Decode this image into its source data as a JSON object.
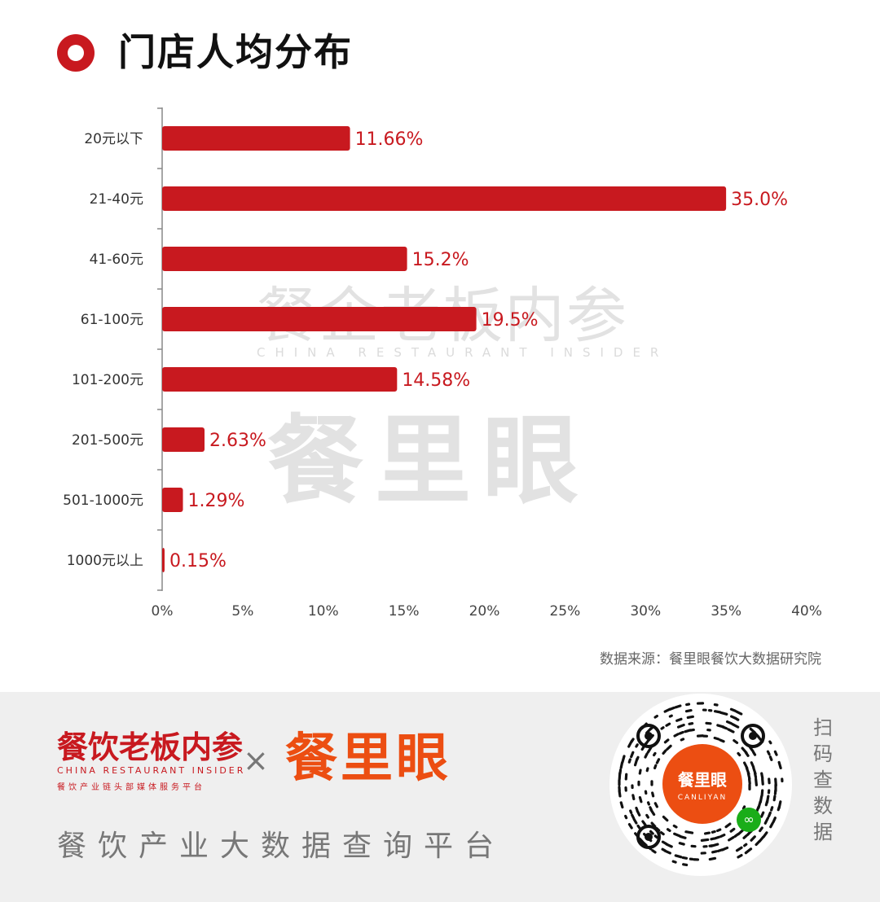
{
  "header": {
    "title": "门店人均分布"
  },
  "watermark": {
    "line1": "餐企老板内参",
    "line2": "CHINA RESTAURANT INSIDER",
    "line3": "餐里眼"
  },
  "source": "数据来源：餐里眼餐饮大数据研究院",
  "colors": {
    "accent": "#c8191f",
    "brand_orange": "#ec4e12",
    "axis": "#888888",
    "footer_bg": "#efefef"
  },
  "footer": {
    "brand_a": "餐饮老板内参",
    "brand_a_en": "CHINA RESTAURANT INSIDER",
    "brand_a_slogan": "餐饮产业链头部媒体服务平台",
    "times": "×",
    "brand_b": "餐里眼",
    "platform": "餐饮产业大数据查询平台",
    "qr_center": "餐里眼",
    "qr_center_en": "CANLIYAN",
    "mini_program_icon": "link-icon",
    "scan": "扫码查数据"
  },
  "chart_data": {
    "type": "bar",
    "orientation": "horizontal",
    "categories": [
      "20元以下",
      "21-40元",
      "41-60元",
      "61-100元",
      "101-200元",
      "201-500元",
      "501-1000元",
      "1000元以上"
    ],
    "values": [
      11.66,
      35.0,
      15.2,
      19.5,
      14.58,
      2.63,
      1.29,
      0.15
    ],
    "value_labels": [
      "11.66%",
      "35.0%",
      "15.2%",
      "19.5%",
      "14.58%",
      "2.63%",
      "1.29%",
      "0.15%"
    ],
    "xlim": [
      0,
      40
    ],
    "xticks": [
      0,
      5,
      10,
      15,
      20,
      25,
      30,
      35,
      40
    ],
    "xtick_labels": [
      "0%",
      "5%",
      "10%",
      "15%",
      "20%",
      "25%",
      "30%",
      "35%",
      "40%"
    ],
    "grid": false,
    "legend": "none"
  }
}
